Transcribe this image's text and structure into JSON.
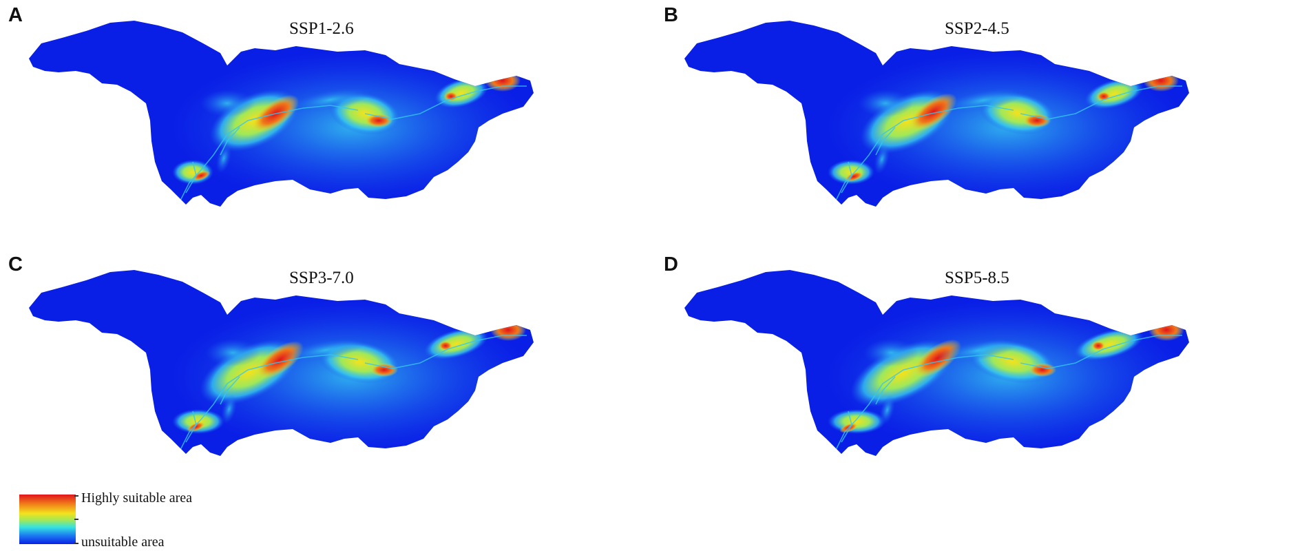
{
  "figure": {
    "panels": [
      {
        "letter": "A",
        "scenario": "SSP1-2.6"
      },
      {
        "letter": "B",
        "scenario": "SSP2-4.5"
      },
      {
        "letter": "C",
        "scenario": "SSP3-7.0"
      },
      {
        "letter": "D",
        "scenario": "SSP5-8.5"
      }
    ]
  },
  "legend": {
    "high_label": "Highly suitable area",
    "low_label": "unsuitable area"
  },
  "colors": {
    "unsuitable": "#0a1fe6",
    "low": "#1c5cf0",
    "moderate_low": "#35c7f0",
    "moderate": "#9fe85a",
    "moderate_high": "#f4e21c",
    "high": "#f0781a",
    "highest": "#e0141b"
  }
}
